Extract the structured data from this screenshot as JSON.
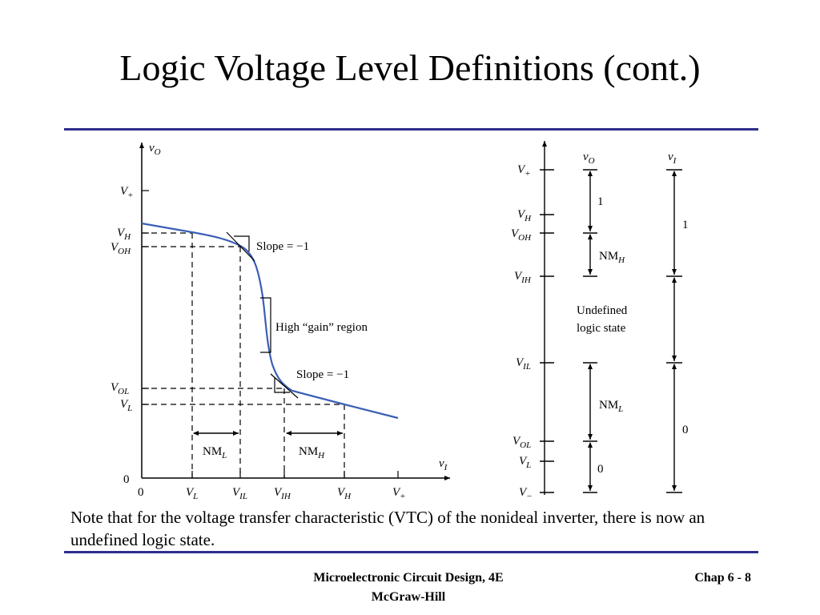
{
  "slide": {
    "title": "Logic Voltage Level Definitions (cont.)",
    "note": "Note that for the voltage transfer characteristic (VTC) of the nonideal inverter, there is now an undefined logic state.",
    "footer": {
      "book": "Microelectronic Circuit Design, 4E",
      "publisher": "McGraw-Hill",
      "page": "Chap 6 - 8"
    }
  },
  "vtc": {
    "y_axis_var": "v",
    "y_axis_sub": "O",
    "x_axis_var": "v",
    "x_axis_sub": "I",
    "origin_y": "0",
    "origin_x": "0",
    "slope_upper": "Slope = −1",
    "slope_lower": "Slope = −1",
    "gain_region": "High “gain” region",
    "nm_low": {
      "base": "NM",
      "sub": "L"
    },
    "nm_high": {
      "base": "NM",
      "sub": "H"
    },
    "y_ticks": [
      {
        "base": "V",
        "sub": "+"
      },
      {
        "base": "V",
        "sub": "H"
      },
      {
        "base": "V",
        "sub": "OH"
      },
      {
        "base": "V",
        "sub": "OL"
      },
      {
        "base": "V",
        "sub": "L"
      }
    ],
    "x_ticks": [
      {
        "base": "V",
        "sub": "L"
      },
      {
        "base": "V",
        "sub": "IL"
      },
      {
        "base": "V",
        "sub": "IH"
      },
      {
        "base": "V",
        "sub": "H"
      },
      {
        "base": "V",
        "sub": "+"
      }
    ],
    "curve_color": "#3a5fb5"
  },
  "levels": {
    "ticks": [
      {
        "base": "V",
        "sub": "+"
      },
      {
        "base": "V",
        "sub": "H"
      },
      {
        "base": "V",
        "sub": "OH"
      },
      {
        "base": "V",
        "sub": "IH"
      },
      {
        "base": "V",
        "sub": "IL"
      },
      {
        "base": "V",
        "sub": "OL"
      },
      {
        "base": "V",
        "sub": "L"
      },
      {
        "base": "V",
        "sub": "−"
      }
    ],
    "vo_var": "v",
    "vo_sub": "O",
    "vi_var": "v",
    "vi_sub": "I",
    "vo_one": "1",
    "vo_zero": "0",
    "nm_high": {
      "base": "NM",
      "sub": "H"
    },
    "nm_low": {
      "base": "NM",
      "sub": "L"
    },
    "undefined_line1": "Undefined",
    "undefined_line2": "logic state",
    "vi_one": "1",
    "vi_zero": "0"
  },
  "colors": {
    "rule": "#2e2e8c",
    "curve": "#3a5fb5"
  }
}
